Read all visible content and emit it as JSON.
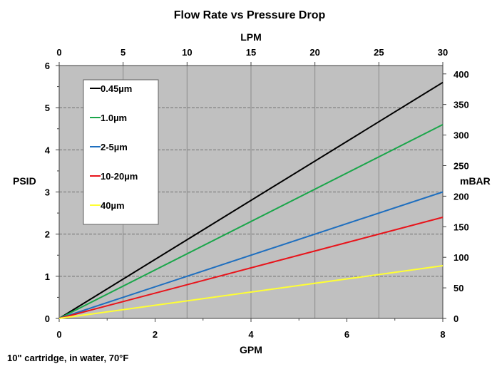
{
  "chart_data": {
    "type": "line",
    "title": "Flow Rate vs Pressure Drop",
    "xlabel": "GPM",
    "x2label": "LPM",
    "ylabel": "PSID",
    "y2label": "mBAR",
    "xlim": [
      0,
      8
    ],
    "x2lim": [
      0,
      30
    ],
    "ylim": [
      0,
      6
    ],
    "y2lim": [
      0,
      413.7
    ],
    "xticks": [
      "0",
      "2",
      "4",
      "6",
      "8"
    ],
    "x2ticks": [
      "0",
      "5",
      "10",
      "15",
      "20",
      "25",
      "30"
    ],
    "yticks": [
      "0",
      "1",
      "2",
      "3",
      "4",
      "5",
      "6"
    ],
    "y2ticks": [
      "0",
      "50",
      "100",
      "150",
      "200",
      "250",
      "300",
      "350",
      "400"
    ],
    "grid": true,
    "legend_position": "top-left",
    "note": "10\" cartridge, in water, 70°F",
    "series": [
      {
        "name": "0.45µm",
        "color": "#000000",
        "x": [
          0,
          8
        ],
        "y": [
          0,
          5.6
        ]
      },
      {
        "name": "1.0µm",
        "color": "#1aa64a",
        "x": [
          0,
          8
        ],
        "y": [
          0,
          4.6
        ]
      },
      {
        "name": "2-5µm",
        "color": "#1f6fbf",
        "x": [
          0,
          8
        ],
        "y": [
          0,
          3.0
        ]
      },
      {
        "name": "10-20µm",
        "color": "#e8141b",
        "x": [
          0,
          8
        ],
        "y": [
          0,
          2.4
        ]
      },
      {
        "name": "40µm",
        "color": "#ffff33",
        "x": [
          0,
          8
        ],
        "y": [
          0,
          1.25
        ]
      }
    ]
  }
}
